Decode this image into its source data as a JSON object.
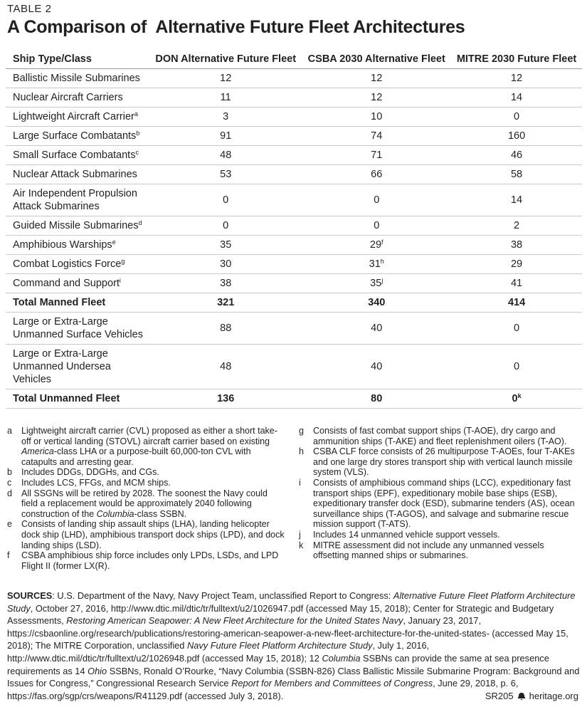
{
  "header": {
    "label": "TABLE 2",
    "title": "A Comparison of  Alternative Future Fleet Architectures"
  },
  "table": {
    "columns": [
      "Ship Type/Class",
      "DON Alternative Future Fleet",
      "CSBA 2030 Alternative Fleet",
      "MITRE 2030 Future Fleet"
    ],
    "rows": [
      {
        "cells": [
          "Ballistic Missile Submarines",
          12,
          12,
          12
        ]
      },
      {
        "cells": [
          "Nuclear Aircraft Carriers",
          11,
          12,
          14
        ]
      },
      {
        "cells": [
          {
            "text": "Lightweight Aircraft Carrier",
            "note": "a"
          },
          3,
          10,
          0
        ]
      },
      {
        "cells": [
          {
            "text": "Large Surface Combatants",
            "note": "b"
          },
          91,
          74,
          160
        ]
      },
      {
        "cells": [
          {
            "text": "Small Surface Combatants",
            "note": "c"
          },
          48,
          71,
          46
        ]
      },
      {
        "cells": [
          "Nuclear Attack Submarines",
          53,
          66,
          58
        ]
      },
      {
        "cells": [
          "Air Independent Propulsion Attack Submarines",
          0,
          0,
          14
        ]
      },
      {
        "cells": [
          {
            "text": "Guided Missile Submarines",
            "note": "d"
          },
          0,
          0,
          2
        ]
      },
      {
        "cells": [
          {
            "text": "Amphibious Warships",
            "note": "e"
          },
          35,
          {
            "text": 29,
            "note": "f"
          },
          38
        ]
      },
      {
        "cells": [
          {
            "text": "Combat Logistics Force",
            "note": "g"
          },
          30,
          {
            "text": 31,
            "note": "h"
          },
          29
        ]
      },
      {
        "cells": [
          {
            "text": "Command and Support",
            "note": "i"
          },
          38,
          {
            "text": 35,
            "note": "j"
          },
          41
        ]
      },
      {
        "cells": [
          "Total Manned Fleet",
          321,
          340,
          414
        ],
        "total": true
      },
      {
        "cells": [
          "Large or Extra-Large Unmanned Surface Vehicles",
          88,
          40,
          0
        ]
      },
      {
        "cells": [
          "Large or Extra-Large Unmanned Undersea Vehicles",
          48,
          40,
          0
        ]
      },
      {
        "cells": [
          "Total Unmanned Fleet",
          136,
          80,
          {
            "text": 0,
            "note": "k"
          }
        ],
        "total": true
      }
    ]
  },
  "notes_left": [
    {
      "key": "a",
      "text": [
        "Lightweight aircraft carrier (CVL) proposed as either a short take-off or vertical landing (STOVL) aircraft carrier based on existing ",
        "America",
        "-class LHA or a purpose-built 60,000-ton CVL with catapults and arresting gear."
      ]
    },
    {
      "key": "b",
      "text": [
        "Includes DDGs, DDGHs, and CGs."
      ]
    },
    {
      "key": "c",
      "text": [
        "Includes LCS, FFGs, and MCM ships."
      ]
    },
    {
      "key": "d",
      "text": [
        "All SSGNs will be retired by 2028. The soonest the Navy could field a replacement would be approximately 2040 following construction of the ",
        "Columbia",
        "-class SSBN."
      ]
    },
    {
      "key": "e",
      "text": [
        "Consists of landing ship assault ships (LHA), landing helicopter dock ship (LHD), amphibious transport dock ships (LPD), and dock landing ships (LSD)."
      ]
    },
    {
      "key": "f",
      "text": [
        "CSBA amphibious ship force includes only LPDs, LSDs, and LPD Flight II (former LX(R)."
      ]
    }
  ],
  "notes_right": [
    {
      "key": "g",
      "text": [
        "Consists of fast combat support ships (T-AOE),  dry cargo and ammunition ships (T-AKE) and fleet replenishment oilers (T-AO)."
      ]
    },
    {
      "key": "h",
      "text": [
        "CSBA CLF force consists of 26 multipurpose T-AOEs, four T-AKEs and one large dry stores transport ship with vertical launch missile system (VLS)."
      ]
    },
    {
      "key": "i",
      "text": [
        "Consists of amphibious command ships (LCC), expeditionary fast transport ships (EPF), expeditionary mobile base ships (ESB), expeditionary transfer dock (ESD), submarine tenders (AS), ocean surveillance ships (T-AGOS), and salvage and submarine rescue mission support (T-ATS)."
      ]
    },
    {
      "key": "j",
      "text": [
        "Includes 14 unmanned vehicle support vessels."
      ]
    },
    {
      "key": "k",
      "text": [
        "MITRE assessment did not include any unmanned vessels offsetting manned ships or submarines."
      ]
    }
  ],
  "sources": {
    "label": "SOURCES",
    "text": [
      ": U.S. Department of the Navy, Navy Project Team, unclassified Report to Congress: ",
      "Alternative Future Fleet Platform Architecture Study",
      ", October 27, 2016, http://www.dtic.mil/dtic/tr/fulltext/u2/1026947.pdf (accessed May 15, 2018); Center for Strategic and Budgetary Assessments, ",
      "Restoring American Seapower: A New Fleet Architecture for the United States Navy",
      ", January 23, 2017, https://csbaonline.org/research/publications/restoring-american-seapower-a-new-fleet-architecture-for-the-united-states- (accessed May 15, 2018); The MITRE Corporation, unclassified ",
      "Navy Future Fleet Platform Architecture Study",
      ", July 1, 2016, http://www.dtic.mil/dtic/tr/fulltext/u2/1026948.pdf (accessed May 15, 2018); 12 ",
      "Columbia",
      " SSBNs can provide the same at sea presence requirements as 14 ",
      "Ohio",
      " SSBNs, Ronald O’Rourke, “Navy Columbia (SSBN-826) Class Ballistic Missile Submarine Program: Background and Issues for Congress,” Congressional Research Service ",
      "Report for Members and Committees of Congress",
      ", June 29, 2018, p. 6, https://fas.org/sgp/crs/weapons/R41129.pdf (accessed July 3, 2018)."
    ]
  },
  "footer": {
    "code": "SR205",
    "site": "heritage.org"
  }
}
